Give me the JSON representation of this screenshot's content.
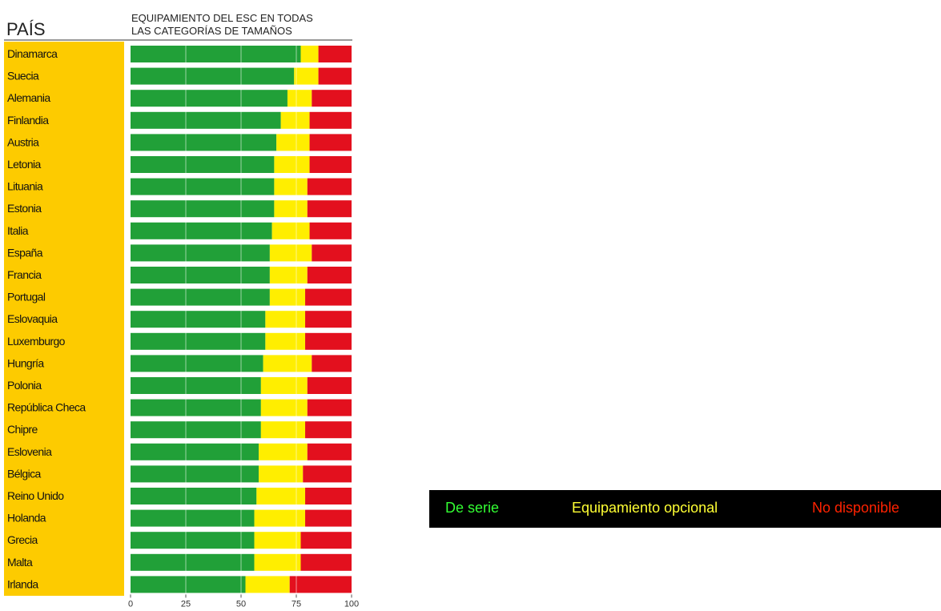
{
  "header": {
    "country_heading": "PAÍS",
    "chart_title_line1": "EQUIPAMIENTO DEL ESC EN TODAS",
    "chart_title_line2": "LAS CATEGORÍAS DE TAMAÑOS"
  },
  "legend": {
    "standard": "De serie",
    "optional": "Equipamiento opcional",
    "unavailable": "No disponible"
  },
  "colors": {
    "standard": "#21a038",
    "optional": "#ffee00",
    "unavailable": "#e3101e",
    "label_panel": "#fdcb00",
    "legend_bg": "#000000",
    "legend_standard_text": "#33ff33",
    "legend_optional_text": "#ffff33",
    "legend_unavailable_text": "#ff2200"
  },
  "chart_data": {
    "type": "bar",
    "orientation": "horizontal",
    "stacked": true,
    "title": "EQUIPAMIENTO DEL ESC EN TODAS LAS CATEGORÍAS DE TAMAÑOS",
    "xlabel": "",
    "ylabel": "PAÍS",
    "xlim": [
      0,
      100
    ],
    "xticks": [
      0,
      25,
      50,
      75,
      100
    ],
    "grid": true,
    "legend_position": "right",
    "categories": [
      "Dinamarca",
      "Suecia",
      "Alemania",
      "Finlandia",
      "Austria",
      "Letonia",
      "Lituania",
      "Estonia",
      "Italia",
      "España",
      "Francia",
      "Portugal",
      "Eslovaquia",
      "Luxemburgo",
      "Hungría",
      "Polonia",
      "República Checa",
      "Chipre",
      "Eslovenia",
      "Bélgica",
      "Reino Unido",
      "Holanda",
      "Grecia",
      "Malta",
      "Irlanda"
    ],
    "series": [
      {
        "name": "De serie",
        "values": [
          77,
          74,
          71,
          68,
          66,
          65,
          65,
          65,
          64,
          63,
          63,
          63,
          61,
          61,
          60,
          59,
          59,
          59,
          58,
          58,
          57,
          56,
          56,
          56,
          52
        ]
      },
      {
        "name": "Equipamiento opcional",
        "values": [
          8,
          11,
          11,
          13,
          15,
          16,
          15,
          15,
          17,
          19,
          17,
          16,
          18,
          18,
          22,
          21,
          21,
          20,
          22,
          20,
          22,
          23,
          21,
          21,
          20
        ]
      },
      {
        "name": "No disponible",
        "values": [
          15,
          15,
          18,
          19,
          19,
          19,
          20,
          20,
          19,
          18,
          20,
          21,
          21,
          21,
          18,
          20,
          20,
          21,
          20,
          22,
          21,
          21,
          23,
          23,
          28
        ]
      }
    ]
  }
}
